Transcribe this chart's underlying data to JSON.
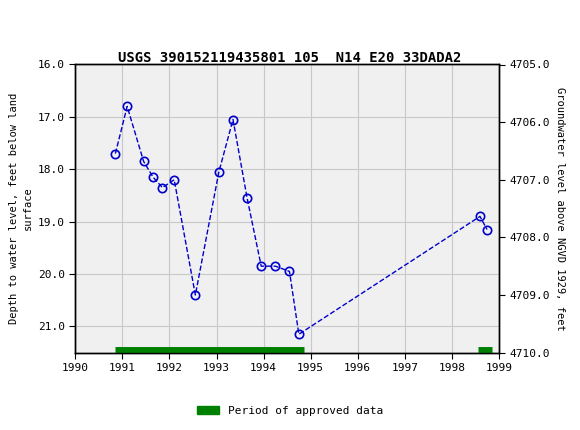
{
  "title": "USGS 390152119435801 105  N14 E20 33DADA2",
  "ylabel_left": "Depth to water level, feet below land\nsurface",
  "ylabel_right": "Groundwater level above NGVD 1929, feet",
  "xlim": [
    1990,
    1999
  ],
  "ylim_left": [
    16.0,
    21.5
  ],
  "ylim_right": [
    4705.0,
    4710.0
  ],
  "xticks": [
    1990,
    1991,
    1992,
    1993,
    1994,
    1995,
    1996,
    1997,
    1998,
    1999
  ],
  "yticks_left": [
    16.0,
    17.0,
    18.0,
    19.0,
    20.0,
    21.0
  ],
  "yticks_right": [
    4710.0,
    4709.0,
    4708.0,
    4707.0,
    4706.0,
    4705.0
  ],
  "data_x": [
    1990.85,
    1991.1,
    1991.45,
    1991.65,
    1991.85,
    1992.1,
    1992.55,
    1993.05,
    1993.35,
    1993.65,
    1993.95,
    1994.25,
    1994.55,
    1994.75,
    1998.6,
    1998.75
  ],
  "data_y": [
    17.7,
    16.8,
    17.85,
    18.15,
    18.35,
    18.2,
    20.4,
    18.05,
    17.05,
    18.55,
    19.85,
    19.85,
    19.95,
    21.15,
    18.9,
    19.15
  ],
  "line_color": "#0000cc",
  "marker_color": "#0000cc",
  "approved_bar_segments": [
    {
      "x_start": 1990.85,
      "x_end": 1994.85,
      "y": 21.45,
      "color": "#008000"
    },
    {
      "x_start": 1998.55,
      "x_end": 1998.85,
      "y": 21.45,
      "color": "#008000"
    }
  ],
  "header_bg_color": "#006633",
  "header_text_color": "#ffffff",
  "plot_bg_color": "#f0f0f0",
  "grid_color": "#c8c8c8",
  "legend_label": "Period of approved data",
  "legend_color": "#008000"
}
